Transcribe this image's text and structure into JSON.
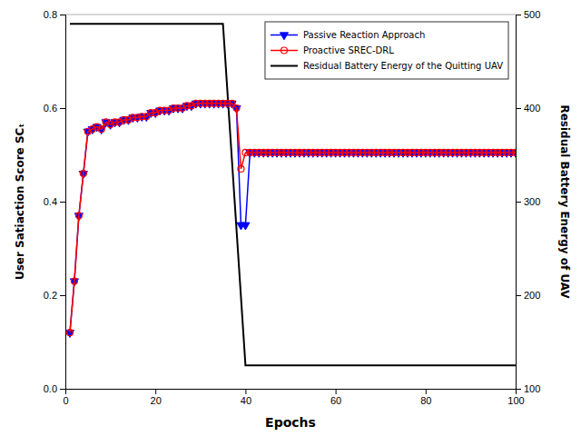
{
  "chart_data": {
    "type": "line",
    "xlabel": "Epochs",
    "ylabel": "User Satiaction Score SCₜ",
    "y2label": "Residual Battery Energy of UAV",
    "xlim": [
      0,
      100
    ],
    "ylim": [
      0,
      0.8
    ],
    "y2lim": [
      100,
      500
    ],
    "xticks": [
      0,
      20,
      40,
      60,
      80,
      100
    ],
    "yticks": [
      {
        "value": 0,
        "label": "0.0"
      },
      0.2,
      0.4,
      0.6,
      0.8
    ],
    "y2ticks": [
      100,
      200,
      300,
      400,
      500
    ],
    "grid": false,
    "legend": "upper right",
    "series": [
      {
        "name": "Passive Reaction Approach",
        "color": "#0000FF",
        "marker": "triangle-down",
        "x": [
          1,
          2,
          3,
          4,
          5,
          6,
          7,
          8,
          9,
          10,
          11,
          12,
          13,
          14,
          15,
          16,
          17,
          18,
          19,
          20,
          21,
          22,
          23,
          24,
          25,
          26,
          27,
          28,
          29,
          30,
          31,
          32,
          33,
          34,
          35,
          36,
          37,
          38,
          39,
          40,
          41,
          42,
          43,
          44,
          45,
          46,
          47,
          48,
          49,
          50,
          51,
          52,
          53,
          54,
          55,
          56,
          57,
          58,
          59,
          60,
          61,
          62,
          63,
          64,
          65,
          66,
          67,
          68,
          69,
          70,
          71,
          72,
          73,
          74,
          75,
          76,
          77,
          78,
          79,
          80,
          81,
          82,
          83,
          84,
          85,
          86,
          87,
          88,
          89,
          90,
          91,
          92,
          93,
          94,
          95,
          96,
          97,
          98,
          99,
          100
        ],
        "values": [
          0.12,
          0.23,
          0.37,
          0.46,
          0.55,
          0.555,
          0.56,
          0.555,
          0.57,
          0.565,
          0.57,
          0.57,
          0.575,
          0.575,
          0.58,
          0.58,
          0.582,
          0.582,
          0.59,
          0.59,
          0.595,
          0.595,
          0.595,
          0.6,
          0.6,
          0.6,
          0.605,
          0.605,
          0.61,
          0.61,
          0.61,
          0.61,
          0.61,
          0.61,
          0.61,
          0.61,
          0.61,
          0.6,
          0.35,
          0.35,
          0.505,
          0.505,
          0.505,
          0.505,
          0.505,
          0.505,
          0.505,
          0.505,
          0.505,
          0.505,
          0.505,
          0.505,
          0.505,
          0.505,
          0.505,
          0.505,
          0.505,
          0.505,
          0.505,
          0.505,
          0.505,
          0.505,
          0.505,
          0.505,
          0.505,
          0.505,
          0.505,
          0.505,
          0.505,
          0.505,
          0.505,
          0.505,
          0.505,
          0.505,
          0.505,
          0.505,
          0.505,
          0.505,
          0.505,
          0.505,
          0.505,
          0.505,
          0.505,
          0.505,
          0.505,
          0.505,
          0.505,
          0.505,
          0.505,
          0.505,
          0.505,
          0.505,
          0.505,
          0.505,
          0.505,
          0.505,
          0.505,
          0.505,
          0.505,
          0.505
        ]
      },
      {
        "name": "Proactive SREC-DRL",
        "color": "#FF0000",
        "marker": "circle-open",
        "x": [
          1,
          2,
          3,
          4,
          5,
          6,
          7,
          8,
          9,
          10,
          11,
          12,
          13,
          14,
          15,
          16,
          17,
          18,
          19,
          20,
          21,
          22,
          23,
          24,
          25,
          26,
          27,
          28,
          29,
          30,
          31,
          32,
          33,
          34,
          35,
          36,
          37,
          38,
          39,
          40,
          41,
          42,
          43,
          44,
          45,
          46,
          47,
          48,
          49,
          50,
          51,
          52,
          53,
          54,
          55,
          56,
          57,
          58,
          59,
          60,
          61,
          62,
          63,
          64,
          65,
          66,
          67,
          68,
          69,
          70,
          71,
          72,
          73,
          74,
          75,
          76,
          77,
          78,
          79,
          80,
          81,
          82,
          83,
          84,
          85,
          86,
          87,
          88,
          89,
          90,
          91,
          92,
          93,
          94,
          95,
          96,
          97,
          98,
          99,
          100
        ],
        "values": [
          0.12,
          0.23,
          0.37,
          0.46,
          0.55,
          0.555,
          0.56,
          0.555,
          0.57,
          0.565,
          0.57,
          0.57,
          0.575,
          0.575,
          0.58,
          0.58,
          0.582,
          0.582,
          0.59,
          0.59,
          0.595,
          0.595,
          0.595,
          0.6,
          0.6,
          0.6,
          0.605,
          0.605,
          0.61,
          0.61,
          0.61,
          0.61,
          0.61,
          0.61,
          0.61,
          0.61,
          0.61,
          0.6,
          0.47,
          0.505,
          0.505,
          0.505,
          0.505,
          0.505,
          0.505,
          0.505,
          0.505,
          0.505,
          0.505,
          0.505,
          0.505,
          0.505,
          0.505,
          0.505,
          0.505,
          0.505,
          0.505,
          0.505,
          0.505,
          0.505,
          0.505,
          0.505,
          0.505,
          0.505,
          0.505,
          0.505,
          0.505,
          0.505,
          0.505,
          0.505,
          0.505,
          0.505,
          0.505,
          0.505,
          0.505,
          0.505,
          0.505,
          0.505,
          0.505,
          0.505,
          0.505,
          0.505,
          0.505,
          0.505,
          0.505,
          0.505,
          0.505,
          0.505,
          0.505,
          0.505,
          0.505,
          0.505,
          0.505,
          0.505,
          0.505,
          0.505,
          0.505,
          0.505,
          0.505,
          0.505
        ]
      },
      {
        "name": "Residual Battery Energy of the Quitting UAV",
        "color": "#000000",
        "axis": "y2",
        "x": [
          1,
          35,
          40,
          100
        ],
        "values": [
          490,
          490,
          125,
          125
        ]
      }
    ]
  }
}
